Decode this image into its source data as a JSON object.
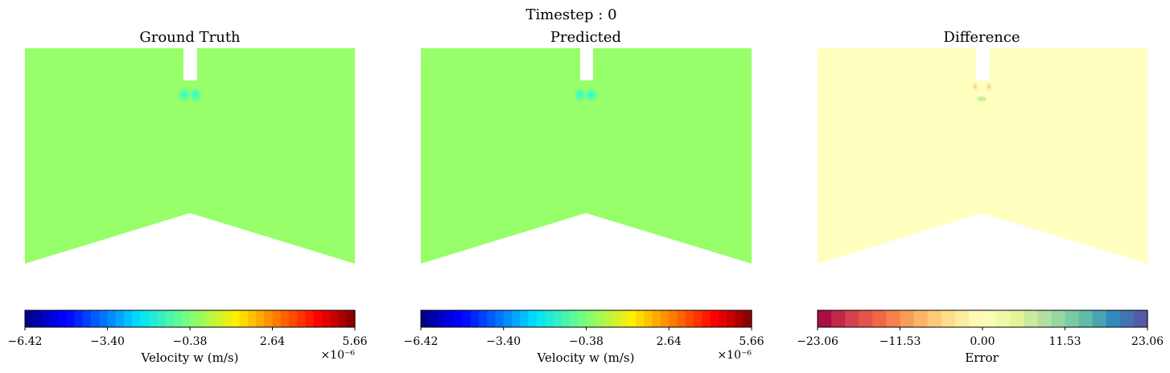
{
  "figure": {
    "suptitle": "Timestep : 0"
  },
  "chart_data": [
    {
      "type": "heatmap",
      "title": "Ground Truth",
      "colormap": "jet",
      "fill_color": "#96ff6a",
      "highlight_color": "#2cffd0",
      "colorbar": {
        "label": "Velocity w (m/s)",
        "ticks": [
          "-6.42",
          "-3.40",
          "-0.38",
          "2.64",
          "5.66"
        ],
        "range": [
          -6.42,
          5.66
        ],
        "multiplier": "×10⁻⁶",
        "levels": 40
      }
    },
    {
      "type": "heatmap",
      "title": "Predicted",
      "colormap": "jet",
      "fill_color": "#96ff6a",
      "highlight_color": "#2cffd0",
      "colorbar": {
        "label": "Velocity w (m/s)",
        "ticks": [
          "-6.42",
          "-3.40",
          "-0.38",
          "2.64",
          "5.66"
        ],
        "range": [
          -6.42,
          5.66
        ],
        "multiplier": "×10⁻⁶",
        "levels": 40
      }
    },
    {
      "type": "heatmap",
      "title": "Difference",
      "colormap": "Spectral",
      "fill_color": "#ffffbf",
      "highlight_color": "#fdd080",
      "colorbar": {
        "label": "Error",
        "ticks": [
          "-23.06",
          "-11.53",
          "0.00",
          "11.53",
          "23.06"
        ],
        "range": [
          -23.06,
          23.06
        ],
        "multiplier": "",
        "levels": 24
      }
    }
  ]
}
